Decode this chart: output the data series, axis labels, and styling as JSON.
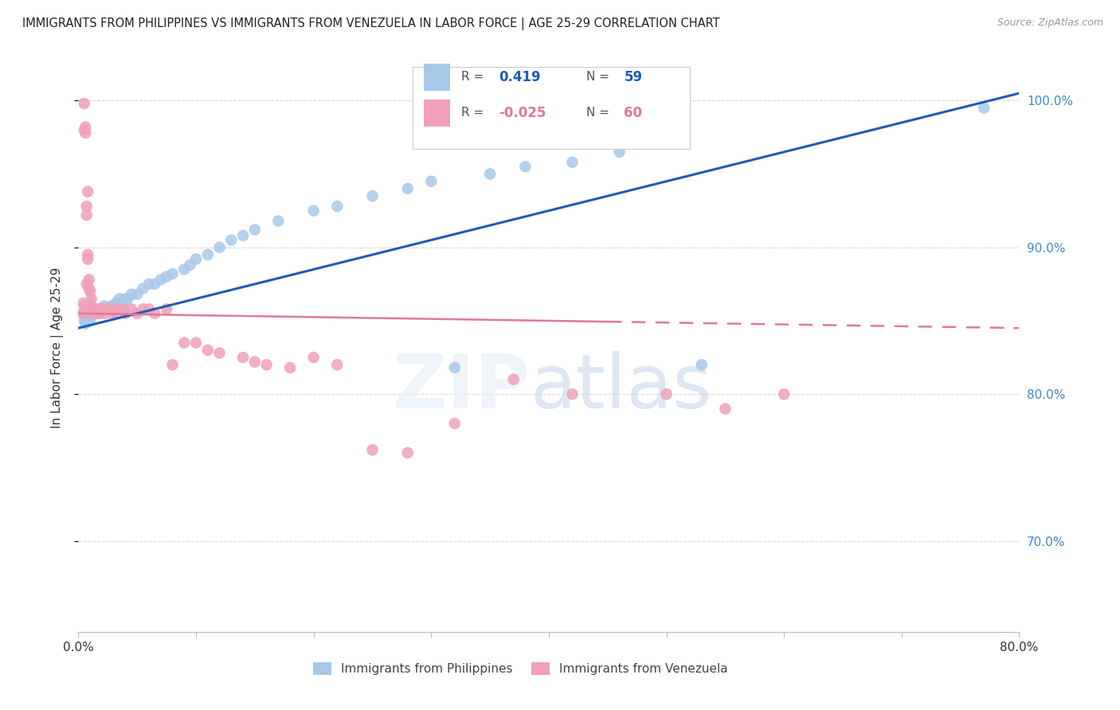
{
  "title": "IMMIGRANTS FROM PHILIPPINES VS IMMIGRANTS FROM VENEZUELA IN LABOR FORCE | AGE 25-29 CORRELATION CHART",
  "source": "Source: ZipAtlas.com",
  "ylabel": "In Labor Force | Age 25-29",
  "xlim": [
    0.0,
    0.8
  ],
  "ylim": [
    0.638,
    1.025
  ],
  "yticks": [
    0.7,
    0.8,
    0.9,
    1.0
  ],
  "yticklabels": [
    "70.0%",
    "80.0%",
    "90.0%",
    "100.0%"
  ],
  "legend_R_phil": "0.419",
  "legend_N_phil": "59",
  "legend_R_ven": "-0.025",
  "legend_N_ven": "60",
  "philippines_color": "#a8c8e8",
  "venezuela_color": "#f0a0b8",
  "trendline_phil_color": "#1f5bb5",
  "trendline_ven_color": "#e07898",
  "grid_color": "#d0d0d0",
  "title_color": "#222222",
  "right_axis_color": "#4488cc",
  "phil_trendline_x0": 0.0,
  "phil_trendline_y0": 0.845,
  "phil_trendline_x1": 0.8,
  "phil_trendline_y1": 1.005,
  "ven_trendline_x0": 0.0,
  "ven_trendline_y0": 0.855,
  "ven_trendline_x1": 0.8,
  "ven_trendline_y1": 0.845,
  "philippines_x": [
    0.004,
    0.005,
    0.005,
    0.006,
    0.006,
    0.007,
    0.007,
    0.008,
    0.008,
    0.009,
    0.01,
    0.01,
    0.011,
    0.012,
    0.013,
    0.014,
    0.015,
    0.016,
    0.017,
    0.018,
    0.02,
    0.022,
    0.025,
    0.028,
    0.03,
    0.032,
    0.035,
    0.038,
    0.04,
    0.042,
    0.045,
    0.05,
    0.055,
    0.06,
    0.065,
    0.07,
    0.075,
    0.08,
    0.09,
    0.095,
    0.1,
    0.11,
    0.12,
    0.13,
    0.14,
    0.15,
    0.17,
    0.2,
    0.22,
    0.25,
    0.28,
    0.3,
    0.32,
    0.35,
    0.38,
    0.42,
    0.46,
    0.53,
    0.77
  ],
  "philippines_y": [
    0.855,
    0.85,
    0.86,
    0.848,
    0.858,
    0.852,
    0.856,
    0.855,
    0.858,
    0.852,
    0.855,
    0.85,
    0.856,
    0.858,
    0.856,
    0.855,
    0.856,
    0.856,
    0.858,
    0.855,
    0.858,
    0.86,
    0.858,
    0.86,
    0.86,
    0.862,
    0.865,
    0.862,
    0.865,
    0.865,
    0.868,
    0.868,
    0.872,
    0.875,
    0.875,
    0.878,
    0.88,
    0.882,
    0.885,
    0.888,
    0.892,
    0.895,
    0.9,
    0.905,
    0.908,
    0.912,
    0.918,
    0.925,
    0.928,
    0.935,
    0.94,
    0.945,
    0.818,
    0.95,
    0.955,
    0.958,
    0.965,
    0.82,
    0.995
  ],
  "venezuela_x": [
    0.004,
    0.004,
    0.005,
    0.005,
    0.006,
    0.006,
    0.007,
    0.007,
    0.007,
    0.007,
    0.008,
    0.008,
    0.008,
    0.009,
    0.009,
    0.01,
    0.01,
    0.011,
    0.011,
    0.012,
    0.012,
    0.013,
    0.014,
    0.015,
    0.016,
    0.018,
    0.02,
    0.022,
    0.025,
    0.028,
    0.03,
    0.032,
    0.035,
    0.038,
    0.04,
    0.045,
    0.05,
    0.055,
    0.06,
    0.065,
    0.075,
    0.08,
    0.09,
    0.1,
    0.11,
    0.12,
    0.14,
    0.15,
    0.16,
    0.18,
    0.2,
    0.22,
    0.25,
    0.28,
    0.32,
    0.37,
    0.42,
    0.5,
    0.55,
    0.6
  ],
  "venezuela_y": [
    0.862,
    0.855,
    0.998,
    0.98,
    0.978,
    0.982,
    0.922,
    0.858,
    0.875,
    0.928,
    0.938,
    0.895,
    0.892,
    0.878,
    0.872,
    0.87,
    0.862,
    0.865,
    0.858,
    0.858,
    0.855,
    0.858,
    0.858,
    0.855,
    0.858,
    0.855,
    0.858,
    0.855,
    0.858,
    0.855,
    0.858,
    0.855,
    0.858,
    0.858,
    0.855,
    0.858,
    0.855,
    0.858,
    0.858,
    0.855,
    0.858,
    0.82,
    0.835,
    0.835,
    0.83,
    0.828,
    0.825,
    0.822,
    0.82,
    0.818,
    0.825,
    0.82,
    0.762,
    0.76,
    0.78,
    0.81,
    0.8,
    0.8,
    0.79,
    0.8
  ]
}
